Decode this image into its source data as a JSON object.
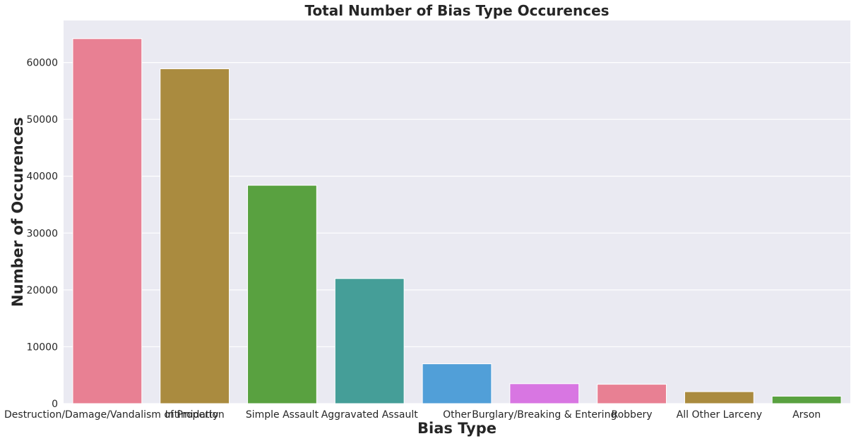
{
  "chart_data": {
    "type": "bar",
    "title": "Total Number of Bias Type Occurences",
    "xlabel": "Bias Type",
    "ylabel": "Number of Occurences",
    "categories": [
      "Destruction/Damage/Vandalism of Property",
      "Intimidation",
      "Simple Assault",
      "Aggravated Assault",
      "Other",
      "Burglary/Breaking & Entering",
      "Robbery",
      "All Other Larceny",
      "Arson"
    ],
    "values": [
      64200,
      58900,
      38400,
      22000,
      7000,
      3500,
      3400,
      2100,
      1300
    ],
    "colors": [
      "#e88093",
      "#aa8b3f",
      "#59a140",
      "#459e98",
      "#519fd8",
      "#d876e2",
      "#e88093",
      "#aa8b3f",
      "#59a140"
    ],
    "ylim": [
      0,
      67400
    ],
    "yticks": [
      0,
      10000,
      20000,
      30000,
      40000,
      50000,
      60000
    ],
    "grid": true,
    "background": "#eaeaf2",
    "legend": "none"
  }
}
